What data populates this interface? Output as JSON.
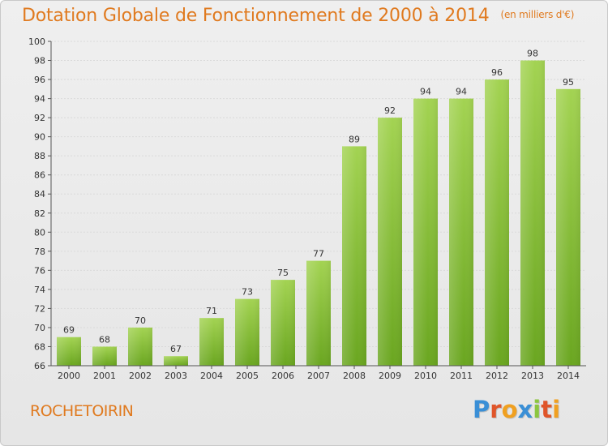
{
  "title": "Dotation Globale de Fonctionnement de 2000 à 2014",
  "subtitle": "(en milliers d'€)",
  "commune": "ROCHETOIRIN",
  "logo": {
    "letters": [
      "P",
      "r",
      "o",
      "x",
      "i",
      "t",
      "i"
    ],
    "colors": [
      "#3a8fd6",
      "#e0552a",
      "#f0a020",
      "#3a8fd6",
      "#8cc63f",
      "#e0552a",
      "#f0a020"
    ]
  },
  "colors": {
    "title": "#e07a1f",
    "bar_light": "#a3d352",
    "bar_dark": "#6aa620"
  },
  "chart_data": {
    "type": "bar",
    "title": "Dotation Globale de Fonctionnement de 2000 à 2014",
    "categories": [
      "2000",
      "2001",
      "2002",
      "2003",
      "2004",
      "2005",
      "2006",
      "2007",
      "2008",
      "2009",
      "2010",
      "2011",
      "2012",
      "2013",
      "2014"
    ],
    "values": [
      69,
      68,
      70,
      67,
      71,
      73,
      75,
      77,
      89,
      92,
      94,
      94,
      96,
      98,
      95
    ],
    "ylim": [
      66,
      100
    ],
    "yticks": [
      66,
      68,
      70,
      72,
      74,
      76,
      78,
      80,
      82,
      84,
      86,
      88,
      90,
      92,
      94,
      96,
      98,
      100
    ],
    "grid": true,
    "xlabel": "",
    "ylabel": ""
  }
}
